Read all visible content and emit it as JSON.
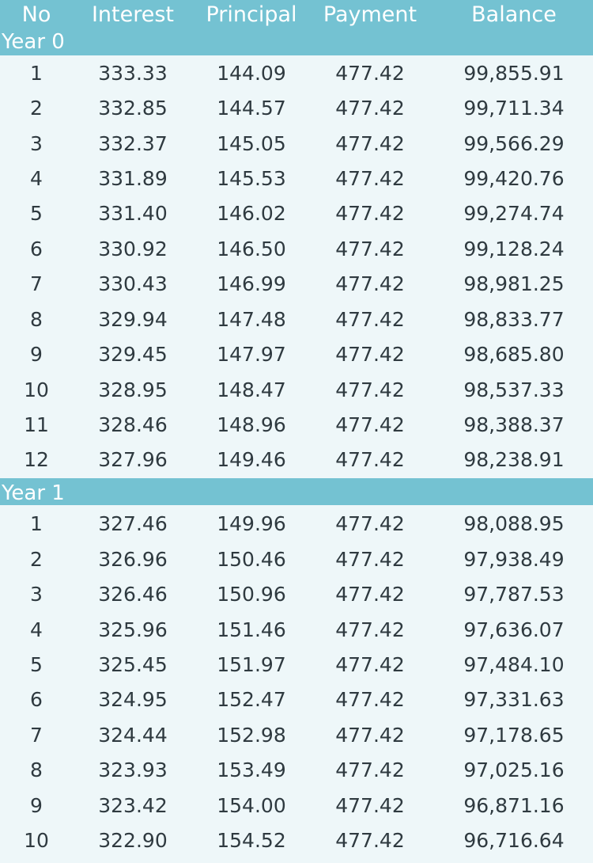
{
  "columns": {
    "no": "No",
    "interest": "Interest",
    "principal": "Principal",
    "payment": "Payment",
    "balance": "Balance"
  },
  "years": [
    {
      "title": "Year 0",
      "rows": [
        {
          "no": "1",
          "interest": "333.33",
          "principal": "144.09",
          "payment": "477.42",
          "balance": "99,855.91"
        },
        {
          "no": "2",
          "interest": "332.85",
          "principal": "144.57",
          "payment": "477.42",
          "balance": "99,711.34"
        },
        {
          "no": "3",
          "interest": "332.37",
          "principal": "145.05",
          "payment": "477.42",
          "balance": "99,566.29"
        },
        {
          "no": "4",
          "interest": "331.89",
          "principal": "145.53",
          "payment": "477.42",
          "balance": "99,420.76"
        },
        {
          "no": "5",
          "interest": "331.40",
          "principal": "146.02",
          "payment": "477.42",
          "balance": "99,274.74"
        },
        {
          "no": "6",
          "interest": "330.92",
          "principal": "146.50",
          "payment": "477.42",
          "balance": "99,128.24"
        },
        {
          "no": "7",
          "interest": "330.43",
          "principal": "146.99",
          "payment": "477.42",
          "balance": "98,981.25"
        },
        {
          "no": "8",
          "interest": "329.94",
          "principal": "147.48",
          "payment": "477.42",
          "balance": "98,833.77"
        },
        {
          "no": "9",
          "interest": "329.45",
          "principal": "147.97",
          "payment": "477.42",
          "balance": "98,685.80"
        },
        {
          "no": "10",
          "interest": "328.95",
          "principal": "148.47",
          "payment": "477.42",
          "balance": "98,537.33"
        },
        {
          "no": "11",
          "interest": "328.46",
          "principal": "148.96",
          "payment": "477.42",
          "balance": "98,388.37"
        },
        {
          "no": "12",
          "interest": "327.96",
          "principal": "149.46",
          "payment": "477.42",
          "balance": "98,238.91"
        }
      ]
    },
    {
      "title": "Year 1",
      "rows": [
        {
          "no": "1",
          "interest": "327.46",
          "principal": "149.96",
          "payment": "477.42",
          "balance": "98,088.95"
        },
        {
          "no": "2",
          "interest": "326.96",
          "principal": "150.46",
          "payment": "477.42",
          "balance": "97,938.49"
        },
        {
          "no": "3",
          "interest": "326.46",
          "principal": "150.96",
          "payment": "477.42",
          "balance": "97,787.53"
        },
        {
          "no": "4",
          "interest": "325.96",
          "principal": "151.46",
          "payment": "477.42",
          "balance": "97,636.07"
        },
        {
          "no": "5",
          "interest": "325.45",
          "principal": "151.97",
          "payment": "477.42",
          "balance": "97,484.10"
        },
        {
          "no": "6",
          "interest": "324.95",
          "principal": "152.47",
          "payment": "477.42",
          "balance": "97,331.63"
        },
        {
          "no": "7",
          "interest": "324.44",
          "principal": "152.98",
          "payment": "477.42",
          "balance": "97,178.65"
        },
        {
          "no": "8",
          "interest": "323.93",
          "principal": "153.49",
          "payment": "477.42",
          "balance": "97,025.16"
        },
        {
          "no": "9",
          "interest": "323.42",
          "principal": "154.00",
          "payment": "477.42",
          "balance": "96,871.16"
        },
        {
          "no": "10",
          "interest": "322.90",
          "principal": "154.52",
          "payment": "477.42",
          "balance": "96,716.64"
        }
      ]
    }
  ]
}
